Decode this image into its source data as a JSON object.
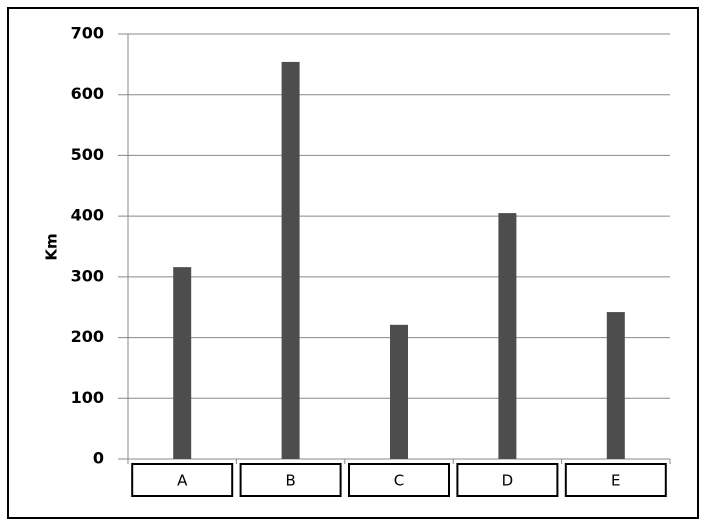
{
  "chart_data": {
    "type": "bar",
    "y_label": "Km",
    "categories": [
      "A",
      "B",
      "C",
      "D",
      "E"
    ],
    "values": [
      316,
      654,
      221,
      405,
      242
    ],
    "color": "#4d4d4d",
    "ylim": [
      0,
      700
    ],
    "yticks": [
      0,
      100,
      200,
      300,
      400,
      500,
      600,
      700
    ],
    "grid": true
  }
}
